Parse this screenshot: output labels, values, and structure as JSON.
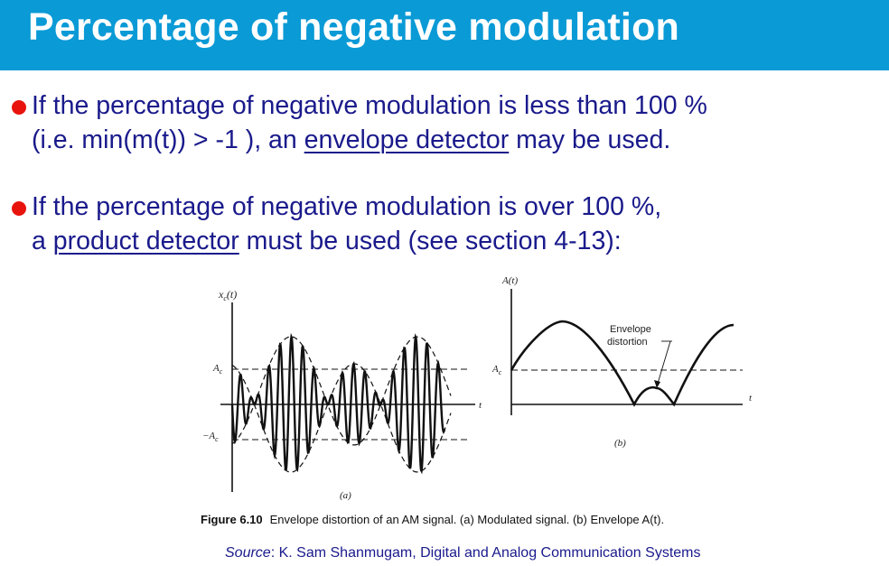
{
  "title": "Percentage of negative modulation",
  "bullets": [
    {
      "line1": "If the percentage of negative modulation is less than 100 %",
      "line2_pre": "(i.e. min(m(t)) > -1 ), an ",
      "line2_link": "envelope detector",
      "line2_post": " may be used."
    },
    {
      "line1": "If the percentage of negative modulation is over 100 %,",
      "line2_pre": "a ",
      "line2_link": "product detector",
      "line2_post": " must be used (see section 4-13):"
    }
  ],
  "figure": {
    "panel_a": {
      "y_axis_label": "x",
      "y_axis_sub": "c",
      "y_axis_arg": "(t)",
      "x_axis_label": "t",
      "pos_level": "A",
      "pos_level_sub": "c",
      "neg_level": "−A",
      "neg_level_sub": "c",
      "panel_label": "(a)"
    },
    "panel_b": {
      "y_axis_label": "A(t)",
      "x_axis_label": "t",
      "level": "A",
      "level_sub": "c",
      "annotation_line1": "Envelope",
      "annotation_line2": "distortion",
      "panel_label": "(b)"
    },
    "caption_number": "Figure 6.10",
    "caption_text": "Envelope distortion of an AM signal. (a) Modulated signal. (b) Envelope A(t)."
  },
  "source": {
    "label": "Source",
    "text": ": K. Sam Shanmugam, Digital and Analog Communication Systems"
  },
  "colors": {
    "title_bar": "#0a9ad6",
    "bullet": "#e8130d",
    "text": "#1a1a8c"
  }
}
